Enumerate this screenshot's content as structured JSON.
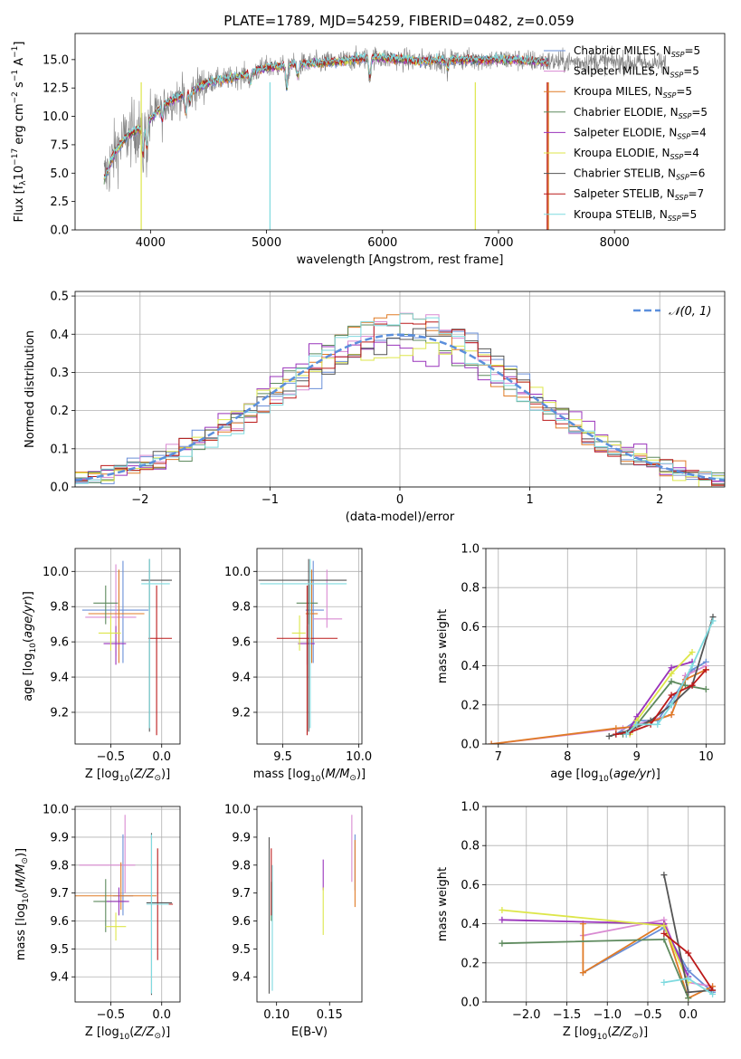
{
  "figure": {
    "title": "PLATE=1789, MJD=54259, FIBERID=0482, z=0.059"
  },
  "colors": {
    "chabrier_miles": "#6a8fd8",
    "salpeter_miles": "#d98ad2",
    "kroupa_miles": "#e07b27",
    "chabrier_elodie": "#5e8a5e",
    "salpeter_elodie": "#9933bb",
    "kroupa_elodie": "#dde64a",
    "chabrier_stelib": "#555555",
    "salpeter_stelib": "#bb1a1a",
    "kroupa_stelib": "#7fdadf",
    "data": "#808080",
    "normal_curve": "#5b8fdc",
    "grid": "#b0b0b0"
  },
  "chart_data": [
    {
      "type": "line",
      "id": "spectrum",
      "xlabel": "wavelength [Angstrom, rest frame]",
      "ylabel": "Flux [f_λ10^{-17} erg cm^{-2} s^{-1} A^{-1}]",
      "xlim": [
        3350,
        8950
      ],
      "ylim": [
        0,
        17.3
      ],
      "xticks": [
        4000,
        5000,
        6000,
        7000,
        8000
      ],
      "yticks": [
        0.0,
        2.5,
        5.0,
        7.5,
        10.0,
        12.5,
        15.0
      ],
      "grid": false,
      "legend": "right",
      "series": [
        {
          "name": "Chabrier MILES, N_SSP=5",
          "key": "chabrier_miles"
        },
        {
          "name": "Salpeter MILES, N_SSP=5",
          "key": "salpeter_miles"
        },
        {
          "name": "Kroupa MILES, N_SSP=5",
          "key": "kroupa_miles"
        },
        {
          "name": "Chabrier ELODIE, N_SSP=5",
          "key": "chabrier_elodie"
        },
        {
          "name": "Salpeter ELODIE, N_SSP=4",
          "key": "salpeter_elodie"
        },
        {
          "name": "Kroupa ELODIE, N_SSP=4",
          "key": "kroupa_elodie"
        },
        {
          "name": "Chabrier STELIB, N_SSP=6",
          "key": "chabrier_stelib"
        },
        {
          "name": "Salpeter STELIB, N_SSP=7",
          "key": "salpeter_stelib"
        },
        {
          "name": "Kroupa STELIB, N_SSP=5",
          "key": "kroupa_stelib"
        }
      ],
      "model_range": [
        3600,
        7430
      ],
      "data_range": [
        3600,
        8450
      ],
      "continuum": [
        [
          3600,
          4.5
        ],
        [
          3700,
          7.0
        ],
        [
          3800,
          8.3
        ],
        [
          3950,
          9.2
        ],
        [
          4100,
          11.0
        ],
        [
          4300,
          12.0
        ],
        [
          4500,
          13.0
        ],
        [
          4800,
          13.6
        ],
        [
          5000,
          14.3
        ],
        [
          5300,
          14.6
        ],
        [
          5600,
          14.8
        ],
        [
          5900,
          15.2
        ],
        [
          6300,
          14.9
        ],
        [
          6700,
          15.0
        ],
        [
          7100,
          15.0
        ],
        [
          7400,
          14.8
        ],
        [
          8000,
          14.8
        ],
        [
          8450,
          14.6
        ]
      ]
    },
    {
      "type": "bar",
      "id": "residuals",
      "xlabel": "(data-model)/error",
      "ylabel": "Normed distribution",
      "xlim": [
        -2.5,
        2.5
      ],
      "ylim": [
        0,
        0.512
      ],
      "xticks": [
        -2,
        -1,
        0,
        1,
        2
      ],
      "yticks": [
        0.0,
        0.1,
        0.2,
        0.3,
        0.4,
        0.5
      ],
      "grid": true,
      "legend": "top-right",
      "normal_label": "𝒩(0, 1)",
      "bin_width": 0.1,
      "bin_range": [
        -2.5,
        2.5
      ]
    },
    {
      "type": "scatter",
      "id": "age_vs_z",
      "xlabel": "Z [log10(Z/Z☉)]",
      "ylabel": "age  [log10(age/yr)]",
      "xlim": [
        -0.85,
        0.18
      ],
      "ylim": [
        9.02,
        10.13
      ],
      "xticks": [
        -0.5,
        0.0
      ],
      "yticks": [
        9.2,
        9.4,
        9.6,
        9.8,
        10.0
      ],
      "grid": true,
      "points": [
        {
          "key": "chabrier_miles",
          "x": -0.38,
          "y": 9.78,
          "xerr": [
            0.4,
            0.25
          ],
          "yerr": [
            0.3,
            0.28
          ]
        },
        {
          "key": "salpeter_miles",
          "x": -0.45,
          "y": 9.74,
          "xerr": [
            0.3,
            0.2
          ],
          "yerr": [
            0.22,
            0.3
          ]
        },
        {
          "key": "kroupa_miles",
          "x": -0.42,
          "y": 9.76,
          "xerr": [
            0.3,
            0.25
          ],
          "yerr": [
            0.28,
            0.25
          ]
        },
        {
          "key": "chabrier_elodie",
          "x": -0.55,
          "y": 9.82,
          "xerr": [
            0.12,
            0.12
          ],
          "yerr": [
            0.12,
            0.1
          ]
        },
        {
          "key": "salpeter_elodie",
          "x": -0.45,
          "y": 9.59,
          "xerr": [
            0.12,
            0.1
          ],
          "yerr": [
            0.12,
            0.1
          ]
        },
        {
          "key": "kroupa_elodie",
          "x": -0.5,
          "y": 9.65,
          "xerr": [
            0.12,
            0.1
          ],
          "yerr": [
            0.1,
            0.1
          ]
        },
        {
          "key": "chabrier_stelib",
          "x": -0.12,
          "y": 9.95,
          "xerr": [
            0.08,
            0.22
          ],
          "yerr": [
            0.86,
            0.12
          ]
        },
        {
          "key": "salpeter_stelib",
          "x": -0.05,
          "y": 9.62,
          "xerr": [
            0.08,
            0.15
          ],
          "yerr": [
            0.55,
            0.3
          ]
        },
        {
          "key": "kroupa_stelib",
          "x": -0.12,
          "y": 9.93,
          "xerr": [
            0.08,
            0.2
          ],
          "yerr": [
            0.82,
            0.14
          ]
        }
      ]
    },
    {
      "type": "scatter",
      "id": "age_vs_mass",
      "xlabel": "mass [log10(M/M☉)]",
      "ylabel": "",
      "xlim": [
        9.33,
        10.02
      ],
      "ylim": [
        9.02,
        10.13
      ],
      "xticks": [
        9.5,
        10.0
      ],
      "yticks": [
        9.2,
        9.4,
        9.6,
        9.8,
        10.0
      ],
      "grid": true,
      "points": [
        {
          "key": "chabrier_miles",
          "x": 9.7,
          "y": 9.78,
          "xerr": [
            0.05,
            0.07
          ],
          "yerr": [
            0.3,
            0.28
          ]
        },
        {
          "key": "salpeter_miles",
          "x": 9.79,
          "y": 9.73,
          "xerr": [
            0.09,
            0.1
          ],
          "yerr": [
            0.05,
            0.28
          ]
        },
        {
          "key": "kroupa_miles",
          "x": 9.69,
          "y": 9.76,
          "xerr": [
            0.04,
            0.04
          ],
          "yerr": [
            0.28,
            0.25
          ]
        },
        {
          "key": "chabrier_elodie",
          "x": 9.67,
          "y": 9.82,
          "xerr": [
            0.08,
            0.06
          ],
          "yerr": [
            0.12,
            0.1
          ]
        },
        {
          "key": "salpeter_elodie",
          "x": 9.66,
          "y": 9.59,
          "xerr": [
            0.06,
            0.05
          ],
          "yerr": [
            0.12,
            0.1
          ]
        },
        {
          "key": "kroupa_elodie",
          "x": 9.61,
          "y": 9.65,
          "xerr": [
            0.05,
            0.04
          ],
          "yerr": [
            0.1,
            0.1
          ]
        },
        {
          "key": "chabrier_stelib",
          "x": 9.67,
          "y": 9.95,
          "xerr": [
            0.33,
            0.25
          ],
          "yerr": [
            0.86,
            0.12
          ]
        },
        {
          "key": "salpeter_stelib",
          "x": 9.66,
          "y": 9.62,
          "xerr": [
            0.2,
            0.2
          ],
          "yerr": [
            0.55,
            0.3
          ]
        },
        {
          "key": "kroupa_stelib",
          "x": 9.68,
          "y": 9.93,
          "xerr": [
            0.33,
            0.24
          ],
          "yerr": [
            0.82,
            0.14
          ]
        }
      ]
    },
    {
      "type": "line",
      "id": "weight_vs_age",
      "xlabel": "age  [log10(age/yr)]",
      "ylabel": "mass weight",
      "xlim": [
        6.82,
        10.27
      ],
      "ylim": [
        0,
        1.0
      ],
      "xticks": [
        7,
        8,
        9,
        10
      ],
      "yticks": [
        0.0,
        0.2,
        0.4,
        0.6,
        0.8,
        1.0
      ],
      "grid": true,
      "series": [
        {
          "key": "chabrier_miles",
          "x": [
            8.7,
            9.0,
            9.3,
            9.8,
            10.0
          ],
          "y": [
            0.05,
            0.12,
            0.12,
            0.38,
            0.42
          ]
        },
        {
          "key": "salpeter_miles",
          "x": [
            6.9,
            8.8,
            9.0,
            9.5,
            9.7,
            10.0
          ],
          "y": [
            0.0,
            0.08,
            0.1,
            0.15,
            0.35,
            0.4
          ]
        },
        {
          "key": "kroupa_miles",
          "x": [
            6.9,
            8.7,
            9.0,
            9.5,
            9.7,
            10.0
          ],
          "y": [
            0.0,
            0.08,
            0.09,
            0.15,
            0.33,
            0.38
          ]
        },
        {
          "key": "chabrier_elodie",
          "x": [
            8.8,
            9.0,
            9.5,
            9.7,
            10.0
          ],
          "y": [
            0.05,
            0.1,
            0.32,
            0.3,
            0.28
          ]
        },
        {
          "key": "salpeter_elodie",
          "x": [
            8.85,
            9.0,
            9.5,
            9.8
          ],
          "y": [
            0.05,
            0.14,
            0.39,
            0.42
          ]
        },
        {
          "key": "kroupa_elodie",
          "x": [
            8.9,
            9.0,
            9.5,
            9.8
          ],
          "y": [
            0.05,
            0.12,
            0.36,
            0.47
          ]
        },
        {
          "key": "chabrier_stelib",
          "x": [
            8.6,
            8.9,
            9.2,
            9.5,
            9.8,
            10.1
          ],
          "y": [
            0.04,
            0.07,
            0.12,
            0.2,
            0.3,
            0.65
          ]
        },
        {
          "key": "salpeter_stelib",
          "x": [
            8.7,
            8.9,
            9.2,
            9.5,
            9.8,
            10.0
          ],
          "y": [
            0.05,
            0.06,
            0.1,
            0.25,
            0.3,
            0.38
          ]
        },
        {
          "key": "kroupa_stelib",
          "x": [
            8.85,
            9.0,
            9.3,
            9.5,
            9.8,
            10.1
          ],
          "y": [
            0.05,
            0.1,
            0.1,
            0.2,
            0.4,
            0.63
          ]
        }
      ]
    },
    {
      "type": "scatter",
      "id": "mass_vs_z",
      "xlabel": "Z [log10(Z/Z☉)]",
      "ylabel": "mass [log10(M/M☉)]",
      "xlim": [
        -0.85,
        0.18
      ],
      "ylim": [
        9.31,
        10.01
      ],
      "xticks": [
        -0.5,
        0.0
      ],
      "yticks": [
        9.4,
        9.5,
        9.6,
        9.7,
        9.8,
        9.9,
        10.0
      ],
      "grid": true,
      "points": [
        {
          "key": "chabrier_miles",
          "x": -0.38,
          "y": 9.69,
          "xerr": [
            0.1,
            0.1
          ],
          "yerr": [
            0.07,
            0.22
          ]
        },
        {
          "key": "salpeter_miles",
          "x": -0.36,
          "y": 9.8,
          "xerr": [
            0.45,
            0.1
          ],
          "yerr": [
            0.1,
            0.18
          ]
        },
        {
          "key": "kroupa_miles",
          "x": -0.4,
          "y": 9.69,
          "xerr": [
            0.45,
            0.35
          ],
          "yerr": [
            0.05,
            0.12
          ]
        },
        {
          "key": "chabrier_elodie",
          "x": -0.55,
          "y": 9.67,
          "xerr": [
            0.12,
            0.2
          ],
          "yerr": [
            0.11,
            0.08
          ]
        },
        {
          "key": "salpeter_elodie",
          "x": -0.42,
          "y": 9.67,
          "xerr": [
            0.12,
            0.1
          ],
          "yerr": [
            0.05,
            0.05
          ]
        },
        {
          "key": "kroupa_elodie",
          "x": -0.45,
          "y": 9.58,
          "xerr": [
            0.1,
            0.1
          ],
          "yerr": [
            0.05,
            0.05
          ]
        },
        {
          "key": "chabrier_stelib",
          "x": -0.1,
          "y": 9.665,
          "xerr": [
            0.05,
            0.2
          ],
          "yerr": [
            0.33,
            0.25
          ]
        },
        {
          "key": "salpeter_stelib",
          "x": -0.04,
          "y": 9.66,
          "xerr": [
            0.1,
            0.15
          ],
          "yerr": [
            0.2,
            0.2
          ]
        },
        {
          "key": "kroupa_stelib",
          "x": -0.1,
          "y": 9.66,
          "xerr": [
            0.05,
            0.17
          ],
          "yerr": [
            0.32,
            0.25
          ]
        }
      ]
    },
    {
      "type": "scatter",
      "id": "mass_vs_ebv",
      "xlabel": "E(B-V)",
      "ylabel": "",
      "xlim": [
        0.0815,
        0.1805
      ],
      "ylim": [
        9.31,
        10.01
      ],
      "xticks": [
        0.1,
        0.15
      ],
      "yticks": [
        9.4,
        9.5,
        9.6,
        9.7,
        9.8,
        9.9,
        10.0
      ],
      "grid": false,
      "points": [
        {
          "key": "chabrier_miles",
          "x": 0.174,
          "y": 9.78,
          "yerr": [
            0.07,
            0.13
          ]
        },
        {
          "key": "salpeter_miles",
          "x": 0.171,
          "y": 9.86,
          "yerr": [
            0.12,
            0.12
          ]
        },
        {
          "key": "kroupa_miles",
          "x": 0.174,
          "y": 9.76,
          "yerr": [
            0.11,
            0.13
          ]
        },
        {
          "key": "chabrier_elodie",
          "x": 0.095,
          "y": 9.68,
          "yerr": [
            0.08,
            0.06
          ]
        },
        {
          "key": "salpeter_elodie",
          "x": 0.144,
          "y": 9.76,
          "yerr": [
            0.05,
            0.06
          ]
        },
        {
          "key": "kroupa_elodie",
          "x": 0.144,
          "y": 9.64,
          "yerr": [
            0.09,
            0.08
          ]
        },
        {
          "key": "chabrier_stelib",
          "x": 0.093,
          "y": 9.62,
          "yerr": [
            0.28,
            0.28
          ]
        },
        {
          "key": "salpeter_stelib",
          "x": 0.095,
          "y": 9.77,
          "yerr": [
            0.15,
            0.09
          ]
        },
        {
          "key": "kroupa_stelib",
          "x": 0.096,
          "y": 9.6,
          "yerr": [
            0.25,
            0.2
          ]
        }
      ]
    },
    {
      "type": "line",
      "id": "weight_vs_z",
      "xlabel": "Z [log10(Z/Z☉)]",
      "ylabel": "mass weight",
      "xlim": [
        -2.5,
        0.45
      ],
      "ylim": [
        0,
        1.0
      ],
      "xticks": [
        -2.0,
        -1.5,
        -1.0,
        -0.5,
        0.0
      ],
      "yticks": [
        0.0,
        0.2,
        0.4,
        0.6,
        0.8,
        1.0
      ],
      "grid": true,
      "series": [
        {
          "key": "chabrier_miles",
          "x": [
            -1.3,
            -0.3,
            0.0,
            0.3
          ],
          "y": [
            0.15,
            0.38,
            0.16,
            0.05
          ]
        },
        {
          "key": "salpeter_miles",
          "x": [
            -1.3,
            -0.3,
            0.0,
            0.3
          ],
          "y": [
            0.34,
            0.42,
            0.1,
            0.08
          ]
        },
        {
          "key": "kroupa_miles",
          "x": [
            -1.3,
            -1.3,
            -0.3,
            0.0,
            0.3
          ],
          "y": [
            0.4,
            0.15,
            0.4,
            0.02,
            0.08
          ]
        },
        {
          "key": "chabrier_elodie",
          "x": [
            -2.3,
            -0.3,
            0.0
          ],
          "y": [
            0.3,
            0.32,
            0.02
          ]
        },
        {
          "key": "salpeter_elodie",
          "x": [
            -2.3,
            -0.3,
            0.0
          ],
          "y": [
            0.42,
            0.4,
            0.13
          ]
        },
        {
          "key": "kroupa_elodie",
          "x": [
            -2.3,
            -0.3,
            0.0
          ],
          "y": [
            0.47,
            0.39,
            0.1
          ]
        },
        {
          "key": "chabrier_stelib",
          "x": [
            -0.3,
            0.0,
            0.3
          ],
          "y": [
            0.65,
            0.05,
            0.06
          ]
        },
        {
          "key": "salpeter_stelib",
          "x": [
            -0.3,
            0.0,
            0.3
          ],
          "y": [
            0.35,
            0.25,
            0.06
          ]
        },
        {
          "key": "kroupa_stelib",
          "x": [
            -0.3,
            0.0,
            0.3
          ],
          "y": [
            0.1,
            0.12,
            0.04
          ]
        }
      ]
    }
  ]
}
